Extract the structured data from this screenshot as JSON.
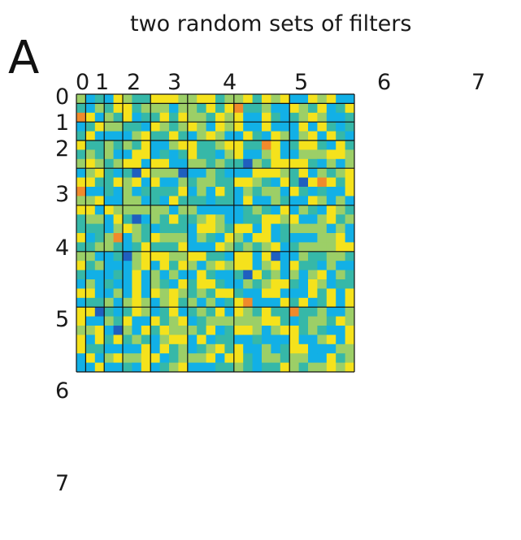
{
  "figure": {
    "title": "two random sets of filters",
    "panel_label": "A"
  },
  "axes": {
    "top_ticks": [
      "0",
      "1",
      "2",
      "3",
      "4",
      "5",
      "6",
      "7"
    ],
    "left_ticks": [
      "0",
      "1",
      "2",
      "3",
      "4",
      "5",
      "6",
      "7"
    ]
  },
  "colormap": {
    "low": "#1f5fbf",
    "mid_low": "#12b0e6",
    "mid": "#36b8a8",
    "mid_high": "#9ccf67",
    "high": "#f5e21c",
    "peak": "#f08a2c"
  }
}
